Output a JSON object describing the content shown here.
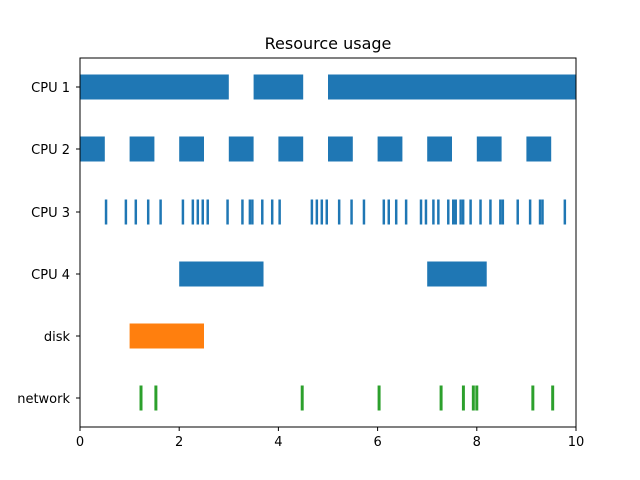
{
  "chart_data": {
    "type": "broken_barh",
    "title": "Resource usage",
    "xlabel": "",
    "ylabel": "",
    "xlim": [
      0,
      10
    ],
    "xticks": [
      0,
      2,
      4,
      6,
      8,
      10
    ],
    "grid": false,
    "categories": [
      "CPU 1",
      "CPU 2",
      "CPU 3",
      "CPU 4",
      "disk",
      "network"
    ],
    "series": [
      {
        "category": "CPU 1",
        "color": "#1f77b4",
        "segments": [
          [
            0,
            3
          ],
          [
            3.5,
            1
          ],
          [
            5,
            5
          ]
        ]
      },
      {
        "category": "CPU 2",
        "color": "#1f77b4",
        "segments": [
          [
            0,
            0.5
          ],
          [
            1,
            0.5
          ],
          [
            2,
            0.5
          ],
          [
            3,
            0.5
          ],
          [
            4,
            0.5
          ],
          [
            5,
            0.5
          ],
          [
            6,
            0.5
          ],
          [
            7,
            0.5
          ],
          [
            8,
            0.5
          ],
          [
            9,
            0.5
          ]
        ]
      },
      {
        "category": "CPU 3",
        "color": "#1f77b4",
        "segments": [
          [
            0.5,
            0.05
          ],
          [
            0.9,
            0.05
          ],
          [
            1.1,
            0.05
          ],
          [
            1.35,
            0.05
          ],
          [
            1.6,
            0.05
          ],
          [
            2.05,
            0.05
          ],
          [
            2.25,
            0.05
          ],
          [
            2.35,
            0.05
          ],
          [
            2.45,
            0.05
          ],
          [
            2.55,
            0.05
          ],
          [
            2.95,
            0.05
          ],
          [
            3.25,
            0.05
          ],
          [
            3.4,
            0.05
          ],
          [
            3.45,
            0.05
          ],
          [
            3.65,
            0.05
          ],
          [
            3.85,
            0.05
          ],
          [
            4.0,
            0.05
          ],
          [
            4.65,
            0.05
          ],
          [
            4.75,
            0.05
          ],
          [
            4.85,
            0.05
          ],
          [
            4.95,
            0.05
          ],
          [
            5.2,
            0.05
          ],
          [
            5.45,
            0.05
          ],
          [
            5.7,
            0.05
          ],
          [
            6.1,
            0.05
          ],
          [
            6.2,
            0.05
          ],
          [
            6.35,
            0.05
          ],
          [
            6.55,
            0.05
          ],
          [
            6.85,
            0.05
          ],
          [
            6.95,
            0.05
          ],
          [
            7.1,
            0.05
          ],
          [
            7.2,
            0.05
          ],
          [
            7.4,
            0.05
          ],
          [
            7.5,
            0.05
          ],
          [
            7.55,
            0.05
          ],
          [
            7.65,
            0.05
          ],
          [
            7.7,
            0.05
          ],
          [
            7.85,
            0.05
          ],
          [
            8.05,
            0.05
          ],
          [
            8.25,
            0.05
          ],
          [
            8.45,
            0.05
          ],
          [
            8.5,
            0.05
          ],
          [
            8.8,
            0.05
          ],
          [
            9.05,
            0.05
          ],
          [
            9.25,
            0.05
          ],
          [
            9.3,
            0.05
          ],
          [
            9.75,
            0.05
          ]
        ]
      },
      {
        "category": "CPU 4",
        "color": "#1f77b4",
        "segments": [
          [
            2,
            1.7
          ],
          [
            7,
            1.2
          ]
        ]
      },
      {
        "category": "disk",
        "color": "#ff7f0e",
        "segments": [
          [
            1,
            1.5
          ]
        ]
      },
      {
        "category": "network",
        "color": "#2ca02c",
        "segments": [
          [
            1.2,
            0.06
          ],
          [
            1.5,
            0.06
          ],
          [
            4.45,
            0.06
          ],
          [
            6.0,
            0.06
          ],
          [
            7.25,
            0.06
          ],
          [
            7.7,
            0.06
          ],
          [
            7.9,
            0.06
          ],
          [
            7.97,
            0.06
          ],
          [
            9.1,
            0.06
          ],
          [
            9.5,
            0.06
          ]
        ]
      }
    ]
  }
}
